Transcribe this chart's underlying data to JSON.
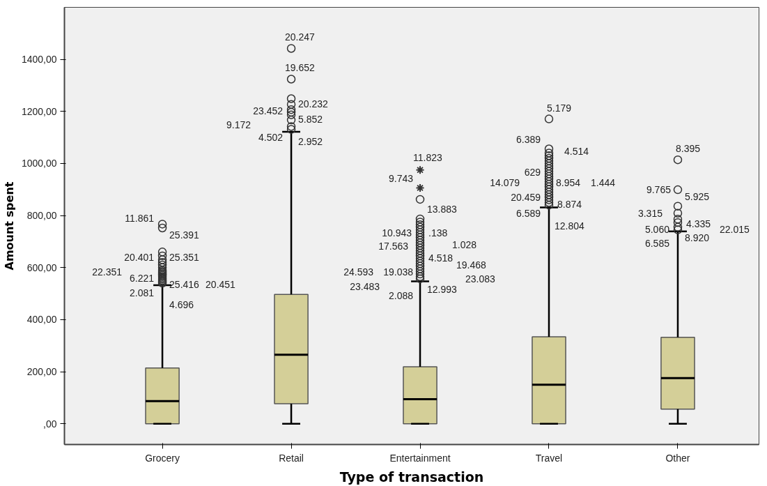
{
  "chart_data": {
    "type": "box",
    "xlabel": "Type of transaction",
    "ylabel": "Amount spent",
    "categories": [
      "Grocery",
      "Retail",
      "Entertainment",
      "Travel",
      "Other"
    ],
    "color": "#d4cf98",
    "marker": "circle",
    "grid": false,
    "ylim": [
      -80,
      1600
    ],
    "yticks": [
      {
        "value": 0,
        "label": ",00"
      },
      {
        "value": 200,
        "label": "200,00"
      },
      {
        "value": 400,
        "label": "400,00"
      },
      {
        "value": 600,
        "label": "600,00"
      },
      {
        "value": 800,
        "label": "800,00"
      },
      {
        "value": 1000,
        "label": "1000,00"
      },
      {
        "value": 1200,
        "label": "1200,00"
      },
      {
        "value": 1400,
        "label": "1400,00"
      }
    ],
    "boxes": [
      {
        "low": 0,
        "q1": 0,
        "median": 87,
        "q3": 214,
        "high": 532,
        "outliers": [
          540,
          545,
          550,
          555,
          560,
          565,
          570,
          575,
          580,
          585,
          590,
          600,
          610,
          620,
          630,
          645,
          660,
          752,
          767
        ]
      },
      {
        "low": 0,
        "q1": 77,
        "median": 265,
        "q3": 497,
        "high": 1122,
        "outliers": [
          1131,
          1142,
          1167,
          1187,
          1197,
          1207,
          1227,
          1249,
          1324,
          1442
        ]
      },
      {
        "low": 0,
        "q1": 0,
        "median": 94,
        "q3": 219,
        "high": 547,
        "outliers": [
          557,
          565,
          575,
          585,
          595,
          605,
          615,
          625,
          635,
          645,
          655,
          665,
          675,
          685,
          695,
          705,
          715,
          725,
          735,
          745,
          755,
          765,
          775,
          787,
          862,
          906,
          975
        ]
      },
      {
        "low": 0,
        "q1": 0,
        "median": 150,
        "q3": 334,
        "high": 831,
        "outliers": [
          840,
          850,
          860,
          870,
          880,
          890,
          900,
          910,
          920,
          930,
          940,
          950,
          960,
          970,
          980,
          990,
          1000,
          1010,
          1020,
          1030,
          1040,
          1056,
          1171
        ]
      },
      {
        "low": 0,
        "q1": 56,
        "median": 175,
        "q3": 332,
        "high": 739,
        "outliers": [
          745,
          755,
          773,
          786,
          809,
          836,
          899,
          1014
        ]
      }
    ],
    "annotations": [
      "11.861",
      "25.391",
      "20.401",
      "25.351",
      "22.351",
      "6.221",
      "25.416",
      "20.451",
      "2.081",
      "4.696",
      "20.247",
      "19.652",
      "23.452",
      "20.232",
      "9.172",
      "5.852",
      "4.502",
      "2.952",
      "11.823",
      "9.743",
      "13.883",
      "10.943",
      ".138",
      "17.563",
      "1.028",
      "4.518",
      "19.468",
      "24.593",
      "19.038",
      "23.083",
      "23.483",
      "2.088",
      "12.993",
      "5.179",
      "6.389",
      "4.514",
      "629",
      "14.079",
      "8.954",
      "1.444",
      "20.459",
      "8.874",
      "6.589",
      "12.804",
      "8.395",
      "9.765",
      "5.925",
      "3.315",
      "4.335",
      "22.015",
      "5.060",
      "8.920",
      "6.585"
    ]
  }
}
